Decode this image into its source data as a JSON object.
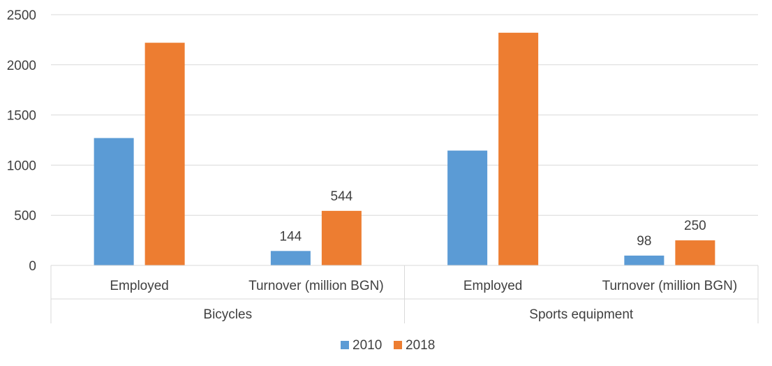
{
  "chart_data": {
    "type": "bar",
    "groups": [
      {
        "label": "Bicycles",
        "categories": [
          "Employed",
          "Turnover (million BGN)"
        ]
      },
      {
        "label": "Sports equipment",
        "categories": [
          "Employed",
          "Turnover (million BGN)"
        ]
      }
    ],
    "series": [
      {
        "name": "2010",
        "color": "#5b9bd5",
        "values": [
          1270,
          144,
          1145,
          98
        ],
        "data_labels": [
          null,
          "144",
          null,
          "98"
        ]
      },
      {
        "name": "2018",
        "color": "#ed7d31",
        "values": [
          2220,
          544,
          2320,
          250
        ],
        "data_labels": [
          null,
          "544",
          null,
          "250"
        ]
      }
    ],
    "ylim": [
      0,
      2500
    ],
    "yticks": [
      0,
      500,
      1000,
      1500,
      2000,
      2500
    ],
    "grid": true,
    "legend": "bottom"
  }
}
